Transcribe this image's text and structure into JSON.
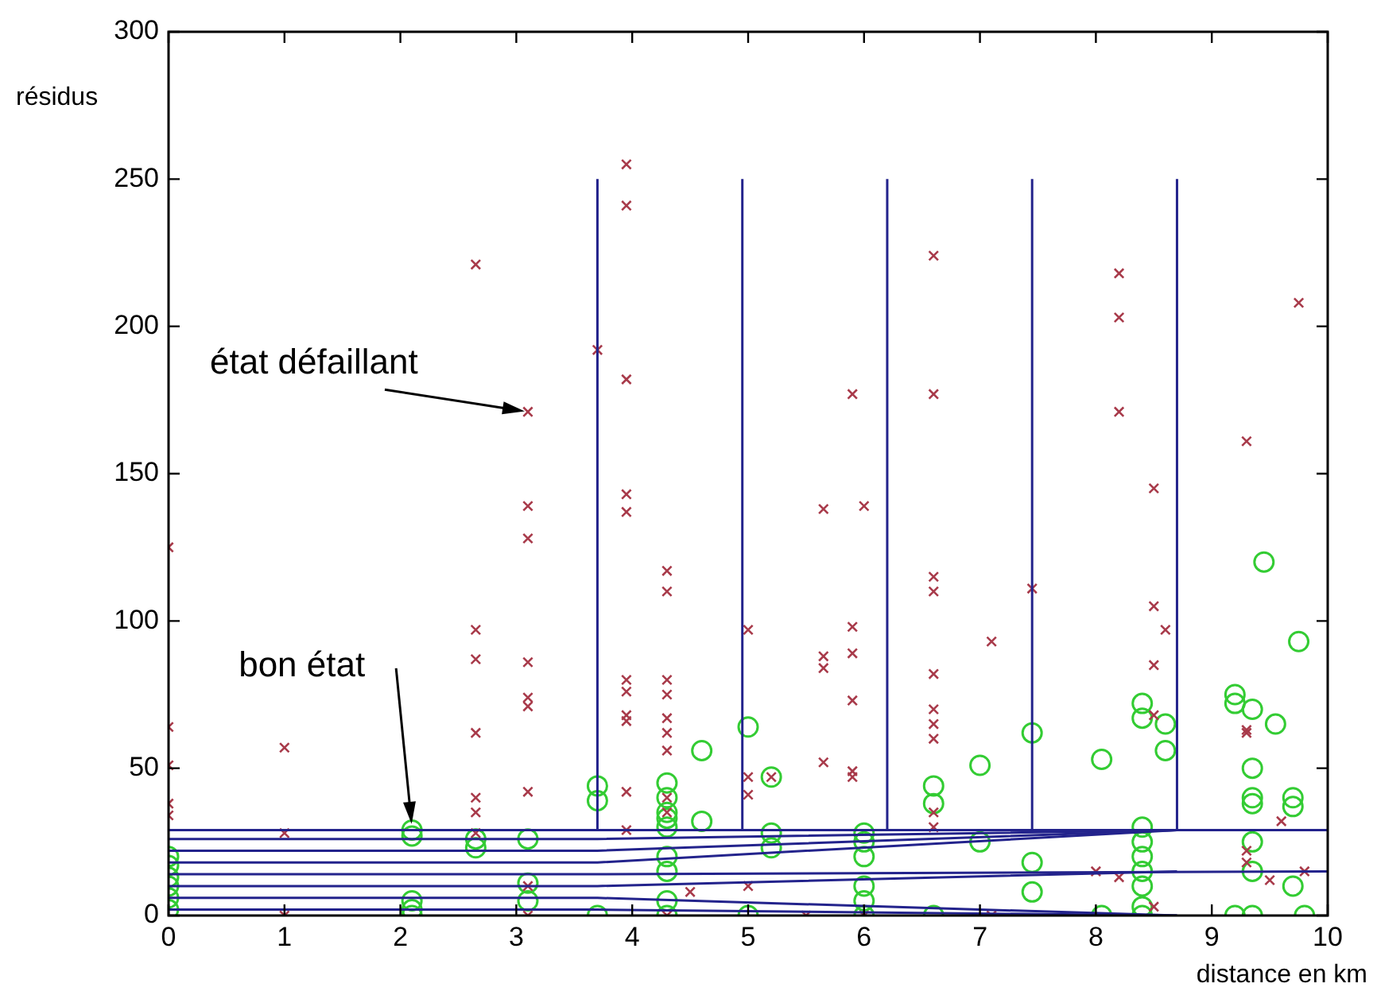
{
  "chart_data": {
    "type": "scatter",
    "xlabel": "distance en km",
    "ylabel": "résidus",
    "xlim": [
      0,
      10
    ],
    "ylim": [
      0,
      300
    ],
    "xticks": [
      0,
      1,
      2,
      3,
      4,
      5,
      6,
      7,
      8,
      9,
      10
    ],
    "yticks": [
      0,
      50,
      100,
      150,
      200,
      250,
      300
    ],
    "grid": false,
    "legend": false,
    "annotations": [
      {
        "text": "état défaillant",
        "x": 3.1,
        "y": 171
      },
      {
        "text": "bon état",
        "x": 2.1,
        "y": 30
      }
    ],
    "series": [
      {
        "type": "scatter",
        "marker": "cross",
        "color": "#a83a4a",
        "x": [
          0,
          0,
          0,
          0,
          0,
          1,
          1,
          1,
          2.65,
          2.65,
          2.65,
          2.65,
          2.65,
          2.65,
          2.65,
          3.1,
          3.1,
          3.1,
          3.1,
          3.1,
          3.1,
          3.1,
          3.1,
          3.1,
          3.7,
          3.95,
          3.95,
          3.95,
          3.95,
          3.95,
          3.95,
          3.95,
          3.95,
          3.95,
          3.95,
          3.95,
          4.3,
          4.3,
          4.3,
          4.3,
          4.3,
          4.3,
          4.3,
          4.3,
          4.3,
          4.3,
          4.5,
          5.0,
          5.0,
          5.0,
          5.0,
          5.2,
          5.5,
          5.65,
          5.65,
          5.65,
          5.65,
          5.9,
          5.9,
          5.9,
          5.9,
          5.9,
          5.9,
          6.0,
          6.0,
          6.6,
          6.6,
          6.6,
          6.6,
          6.6,
          6.6,
          6.6,
          6.6,
          6.6,
          6.6,
          7.1,
          7.1,
          7.45,
          8.0,
          8.2,
          8.2,
          8.2,
          8.2,
          8.5,
          8.5,
          8.5,
          8.5,
          8.5,
          8.6,
          9.3,
          9.3,
          9.3,
          9.3,
          9.3,
          9.5,
          9.6,
          9.75,
          9.8
        ],
        "values": [
          125,
          64,
          51,
          38,
          34,
          57,
          28,
          0,
          221,
          97,
          87,
          62,
          40,
          35,
          28,
          171,
          139,
          128,
          86,
          74,
          71,
          42,
          10,
          0,
          192,
          255,
          241,
          182,
          143,
          137,
          80,
          76,
          68,
          66,
          42,
          29,
          117,
          110,
          80,
          75,
          67,
          62,
          56,
          40,
          35,
          0,
          8,
          97,
          47,
          41,
          10,
          47,
          0,
          138,
          88,
          84,
          52,
          177,
          98,
          89,
          73,
          49,
          47,
          139,
          0,
          224,
          177,
          115,
          110,
          82,
          70,
          65,
          60,
          35,
          30,
          93,
          0,
          111,
          15,
          218,
          203,
          171,
          13,
          145,
          105,
          85,
          68,
          3,
          97,
          161,
          63,
          62,
          22,
          18,
          12,
          32,
          208,
          15
        ]
      },
      {
        "type": "scatter",
        "marker": "circle",
        "color": "#33cc33",
        "x": [
          0,
          0,
          0,
          0,
          0,
          0,
          2.1,
          2.1,
          2.1,
          2.1,
          2.1,
          2.65,
          2.65,
          3.1,
          3.1,
          3.1,
          3.7,
          3.7,
          3.7,
          4.3,
          4.3,
          4.3,
          4.3,
          4.3,
          4.3,
          4.3,
          4.3,
          4.3,
          4.6,
          4.6,
          5.0,
          5.0,
          5.2,
          5.2,
          5.2,
          6.0,
          6.0,
          6.0,
          6.0,
          6.0,
          6.0,
          6.6,
          6.6,
          6.6,
          7.0,
          7.0,
          7.45,
          7.45,
          7.45,
          8.05,
          8.05,
          8.4,
          8.4,
          8.4,
          8.4,
          8.4,
          8.4,
          8.4,
          8.4,
          8.4,
          8.6,
          8.6,
          9.2,
          9.2,
          9.2,
          9.35,
          9.35,
          9.35,
          9.35,
          9.35,
          9.35,
          9.35,
          9.45,
          9.55,
          9.7,
          9.7,
          9.7,
          9.75,
          9.8
        ],
        "values": [
          20,
          17,
          13,
          10,
          6,
          2,
          29,
          27,
          5,
          2,
          0,
          26,
          23,
          26,
          11,
          5,
          44,
          39,
          0,
          45,
          40,
          35,
          33,
          30,
          20,
          15,
          5,
          0,
          56,
          32,
          64,
          0,
          47,
          28,
          23,
          28,
          25,
          20,
          10,
          5,
          0,
          44,
          38,
          0,
          51,
          25,
          62,
          18,
          8,
          53,
          0,
          72,
          67,
          30,
          25,
          20,
          15,
          10,
          3,
          0,
          65,
          56,
          75,
          72,
          0,
          70,
          50,
          40,
          38,
          25,
          15,
          0,
          120,
          65,
          40,
          37,
          10,
          93,
          0
        ]
      },
      {
        "type": "line",
        "marker": "none",
        "color": "#23238c",
        "x": [
          3.7,
          3.7
        ],
        "values": [
          29,
          250
        ]
      },
      {
        "type": "line",
        "marker": "none",
        "color": "#23238c",
        "x": [
          4.95,
          4.95
        ],
        "values": [
          29,
          250
        ]
      },
      {
        "type": "line",
        "marker": "none",
        "color": "#23238c",
        "x": [
          6.2,
          6.2
        ],
        "values": [
          29,
          250
        ]
      },
      {
        "type": "line",
        "marker": "none",
        "color": "#23238c",
        "x": [
          7.45,
          7.45
        ],
        "values": [
          29,
          250
        ]
      },
      {
        "type": "line",
        "marker": "none",
        "color": "#23238c",
        "x": [
          8.7,
          8.7
        ],
        "values": [
          29,
          250
        ]
      },
      {
        "type": "line",
        "marker": "none",
        "color": "#23238c",
        "x": [
          0,
          3.7,
          10
        ],
        "values": [
          29,
          29,
          29
        ]
      },
      {
        "type": "line",
        "marker": "none",
        "color": "#23238c",
        "x": [
          0,
          3.7,
          8.7
        ],
        "values": [
          26,
          26,
          29
        ]
      },
      {
        "type": "line",
        "marker": "none",
        "color": "#23238c",
        "x": [
          0,
          3.7,
          8.7
        ],
        "values": [
          22,
          22,
          29
        ]
      },
      {
        "type": "line",
        "marker": "none",
        "color": "#23238c",
        "x": [
          0,
          3.7,
          8.7
        ],
        "values": [
          18,
          18,
          29
        ]
      },
      {
        "type": "line",
        "marker": "none",
        "color": "#23238c",
        "x": [
          0,
          3.7,
          10
        ],
        "values": [
          14,
          14,
          15
        ]
      },
      {
        "type": "line",
        "marker": "none",
        "color": "#23238c",
        "x": [
          0,
          3.7,
          8.7
        ],
        "values": [
          10,
          10,
          15
        ]
      },
      {
        "type": "line",
        "marker": "none",
        "color": "#23238c",
        "x": [
          0,
          3.7,
          8.7
        ],
        "values": [
          6,
          6,
          0
        ]
      },
      {
        "type": "line",
        "marker": "none",
        "color": "#23238c",
        "x": [
          0,
          3.7,
          8.7
        ],
        "values": [
          2,
          2,
          0
        ]
      }
    ]
  }
}
